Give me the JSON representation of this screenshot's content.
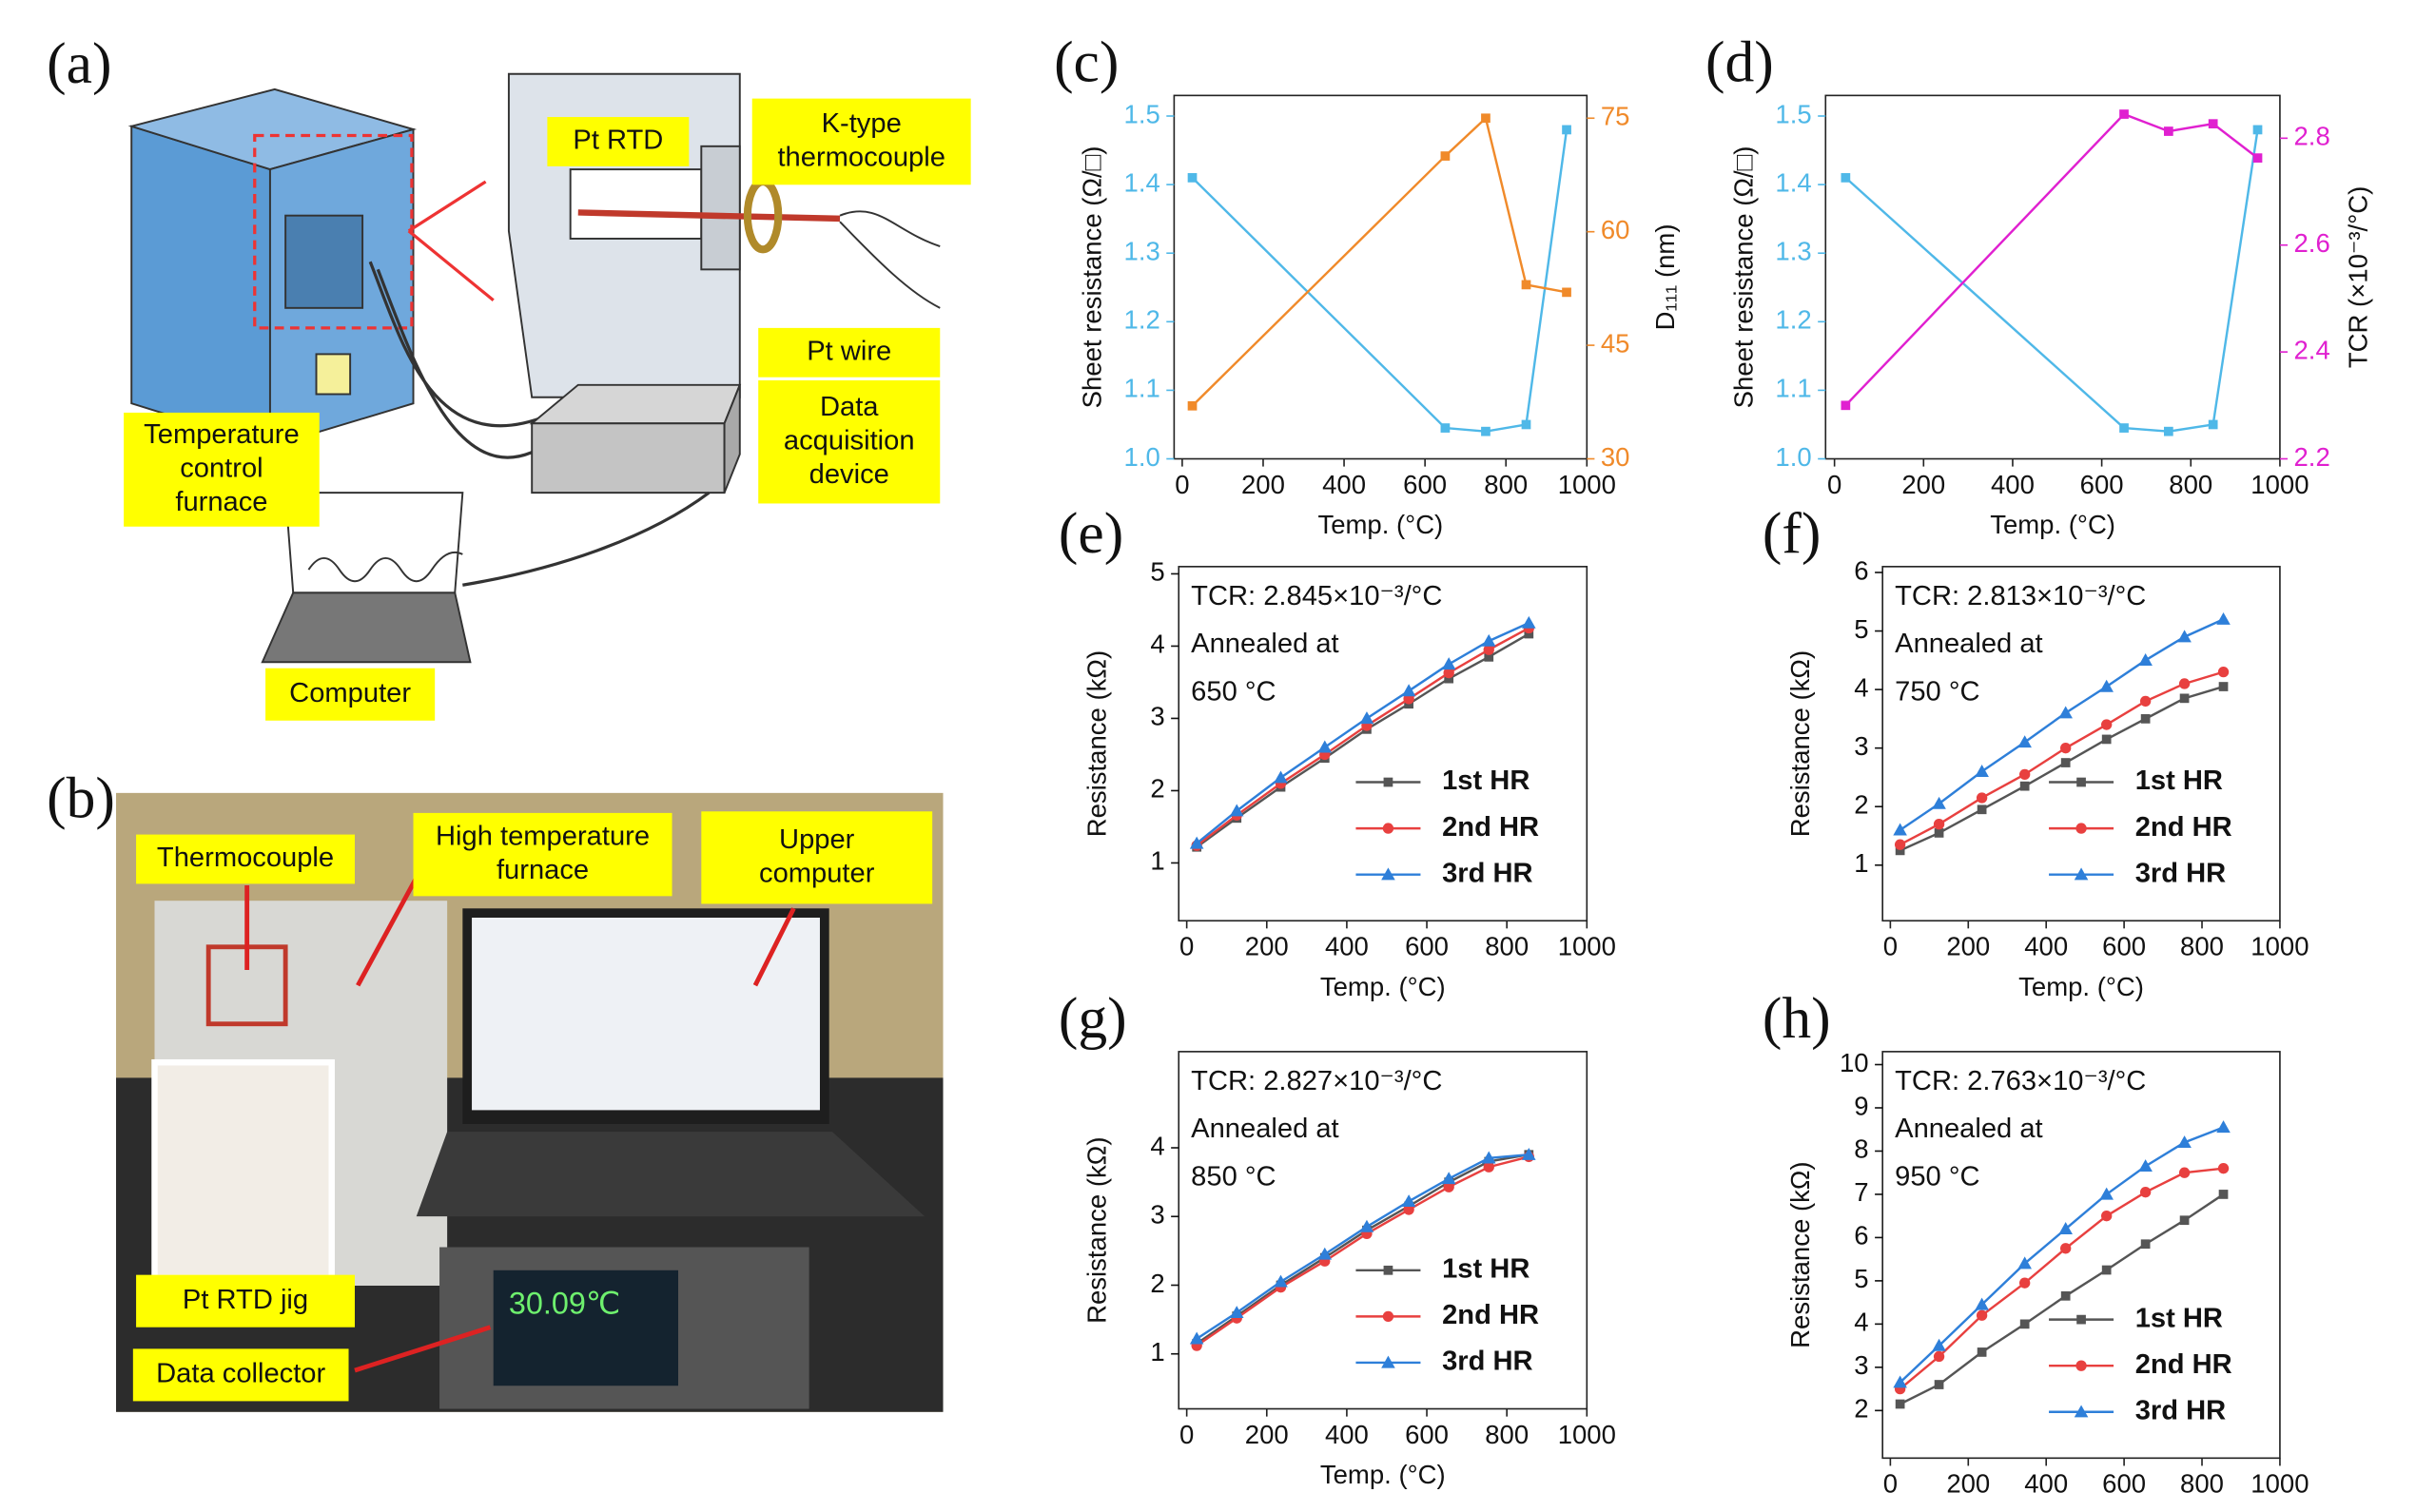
{
  "diagram_a": {
    "panel": "(a)",
    "labels": [
      {
        "lines": [
          "Pt RTD"
        ]
      },
      {
        "lines": [
          "K-type",
          "thermocouple"
        ]
      },
      {
        "lines": [
          "Pt wire"
        ]
      },
      {
        "lines": [
          "Data",
          "acquisition",
          "device"
        ]
      },
      {
        "lines": [
          "Temperature",
          "control",
          "furnace"
        ]
      },
      {
        "lines": [
          "Computer"
        ]
      }
    ]
  },
  "photo_b": {
    "panel": "(b)",
    "display": "30.09℃",
    "labels": [
      {
        "lines": [
          "Thermocouple"
        ]
      },
      {
        "lines": [
          "High temperature",
          "furnace"
        ]
      },
      {
        "lines": [
          "Upper",
          "computer"
        ]
      },
      {
        "lines": [
          "Pt RTD jig"
        ]
      },
      {
        "lines": [
          "Data collector"
        ]
      }
    ]
  },
  "chart_data": [
    {
      "type": "line",
      "panel": "(c)",
      "xlabel": "Temp. (°C)",
      "ylabel": "Sheet resistance (Ω/□)",
      "y2label": "D₁₁₁ (nm)",
      "x": [
        25,
        650,
        750,
        850,
        950
      ],
      "series": [
        {
          "color": "#4fb8e8",
          "marker": "square",
          "values": [
            1.41,
            1.045,
            1.04,
            1.05,
            1.48
          ]
        },
        {
          "color": "#f08a2a",
          "marker": "square",
          "axis": "y2",
          "values": [
            37,
            70,
            75,
            53,
            52
          ]
        }
      ],
      "xlim": [
        -20,
        1000
      ],
      "xticks": [
        0,
        200,
        400,
        600,
        800,
        1000
      ],
      "ylim": [
        1.0,
        1.53
      ],
      "yticks": [
        {
          "value": 1,
          "label": "1.0"
        },
        1.1,
        1.2,
        1.3,
        1.4,
        1.5
      ],
      "y2lim": [
        30,
        78
      ],
      "y2ticks": [
        30,
        45,
        60,
        75
      ]
    },
    {
      "type": "line",
      "panel": "(d)",
      "xlabel": "Temp. (°C)",
      "ylabel": "Sheet resistance (Ω/□)",
      "y2label": "TCR (×10⁻³/°C)",
      "x": [
        25,
        650,
        750,
        850,
        950
      ],
      "series": [
        {
          "color": "#4fb8e8",
          "marker": "square",
          "values": [
            1.41,
            1.045,
            1.04,
            1.05,
            1.48
          ]
        },
        {
          "color": "#e020d0",
          "marker": "square",
          "axis": "y2",
          "values": [
            2.3,
            2.845,
            2.813,
            2.827,
            2.763
          ]
        }
      ],
      "xlim": [
        -20,
        1000
      ],
      "xticks": [
        0,
        200,
        400,
        600,
        800,
        1000
      ],
      "ylim": [
        1.0,
        1.53
      ],
      "yticks": [
        {
          "value": 1,
          "label": "1.0"
        },
        1.1,
        1.2,
        1.3,
        1.4,
        1.5
      ],
      "y2lim": [
        2.2,
        2.88
      ],
      "y2ticks": [
        2.2,
        2.4,
        2.6,
        2.8
      ]
    },
    {
      "type": "line",
      "panel": "(e)",
      "xlabel": "Temp. (°C)",
      "ylabel": "Resistance (kΩ)",
      "annotations": [
        "TCR: 2.845×10⁻³/°C",
        "Annealed at",
        "650 °C"
      ],
      "legend": "lower right",
      "x": [
        25,
        125,
        235,
        345,
        450,
        555,
        655,
        755,
        855
      ],
      "series": [
        {
          "name": "1st HR",
          "color": "#555555",
          "marker": "square",
          "values": [
            1.22,
            1.62,
            2.05,
            2.45,
            2.85,
            3.2,
            3.55,
            3.85,
            4.17
          ]
        },
        {
          "name": "2nd HR",
          "color": "#e8403f",
          "marker": "circle",
          "values": [
            1.24,
            1.66,
            2.1,
            2.5,
            2.9,
            3.27,
            3.63,
            3.95,
            4.25
          ]
        },
        {
          "name": "3rd HR",
          "color": "#2e7fd9",
          "marker": "triangle",
          "values": [
            1.27,
            1.72,
            2.18,
            2.6,
            3.0,
            3.38,
            3.75,
            4.07,
            4.32
          ]
        }
      ],
      "xlim": [
        -20,
        1000
      ],
      "xticks": [
        0,
        200,
        400,
        600,
        800,
        1000
      ],
      "ylim": [
        0.2,
        5.1
      ],
      "yticks": [
        1,
        2,
        3,
        4,
        5
      ]
    },
    {
      "type": "line",
      "panel": "(f)",
      "xlabel": "Temp. (°C)",
      "ylabel": "Resistance (kΩ)",
      "annotations": [
        "TCR: 2.813×10⁻³/°C",
        "Annealed at",
        "750 °C"
      ],
      "legend": "lower right",
      "x": [
        25,
        125,
        235,
        345,
        450,
        555,
        655,
        755,
        855
      ],
      "series": [
        {
          "name": "1st HR",
          "color": "#555555",
          "marker": "square",
          "values": [
            1.25,
            1.55,
            1.95,
            2.35,
            2.75,
            3.15,
            3.5,
            3.85,
            4.05
          ]
        },
        {
          "name": "2nd HR",
          "color": "#e8403f",
          "marker": "circle",
          "values": [
            1.35,
            1.7,
            2.15,
            2.55,
            3.0,
            3.4,
            3.8,
            4.1,
            4.3
          ]
        },
        {
          "name": "3rd HR",
          "color": "#2e7fd9",
          "marker": "triangle",
          "values": [
            1.6,
            2.05,
            2.6,
            3.1,
            3.6,
            4.05,
            4.5,
            4.9,
            5.2
          ]
        }
      ],
      "xlim": [
        -20,
        1000
      ],
      "xticks": [
        0,
        200,
        400,
        600,
        800,
        1000
      ],
      "ylim": [
        0.05,
        6.1
      ],
      "yticks": [
        1,
        2,
        3,
        4,
        5,
        6
      ]
    },
    {
      "type": "line",
      "panel": "(g)",
      "xlabel": "Temp. (°C)",
      "ylabel": "Resistance (kΩ)",
      "annotations": [
        "TCR: 2.827×10⁻³/°C",
        "Annealed at",
        "850 °C"
      ],
      "legend": "lower right",
      "x": [
        25,
        125,
        235,
        345,
        450,
        555,
        655,
        755,
        855
      ],
      "series": [
        {
          "name": "1st HR",
          "color": "#555555",
          "marker": "square",
          "values": [
            1.15,
            1.55,
            2.0,
            2.4,
            2.8,
            3.15,
            3.5,
            3.8,
            3.9
          ]
        },
        {
          "name": "2nd HR",
          "color": "#e8403f",
          "marker": "circle",
          "values": [
            1.12,
            1.52,
            1.97,
            2.35,
            2.75,
            3.1,
            3.43,
            3.72,
            3.87
          ]
        },
        {
          "name": "3rd HR",
          "color": "#2e7fd9",
          "marker": "triangle",
          "values": [
            1.22,
            1.6,
            2.05,
            2.45,
            2.85,
            3.22,
            3.55,
            3.85,
            3.9
          ]
        }
      ],
      "xlim": [
        -20,
        1000
      ],
      "xticks": [
        0,
        200,
        400,
        600,
        800,
        1000
      ],
      "ylim": [
        0.2,
        5.4
      ],
      "yticks": [
        1,
        2,
        3,
        4
      ]
    },
    {
      "type": "line",
      "panel": "(h)",
      "xlabel": "Temp. (°C)",
      "ylabel": "Resistance (kΩ)",
      "annotations": [
        "TCR: 2.763×10⁻³/°C",
        "Annealed at",
        "950 °C"
      ],
      "legend": "lower right",
      "x": [
        25,
        125,
        235,
        345,
        450,
        555,
        655,
        755,
        855
      ],
      "series": [
        {
          "name": "1st HR",
          "color": "#555555",
          "marker": "square",
          "values": [
            2.15,
            2.6,
            3.35,
            4.0,
            4.65,
            5.25,
            5.85,
            6.4,
            7.0
          ]
        },
        {
          "name": "2nd HR",
          "color": "#e8403f",
          "marker": "circle",
          "values": [
            2.5,
            3.25,
            4.2,
            4.95,
            5.75,
            6.5,
            7.05,
            7.5,
            7.6
          ]
        },
        {
          "name": "3rd HR",
          "color": "#2e7fd9",
          "marker": "triangle",
          "values": [
            2.65,
            3.5,
            4.45,
            5.4,
            6.2,
            7.0,
            7.65,
            8.2,
            8.55
          ]
        }
      ],
      "xlim": [
        -20,
        1000
      ],
      "xticks": [
        0,
        200,
        400,
        600,
        800,
        1000
      ],
      "ylim": [
        0.9,
        10.3
      ],
      "yticks": [
        2,
        3,
        4,
        5,
        6,
        7,
        8,
        9,
        10
      ]
    }
  ]
}
